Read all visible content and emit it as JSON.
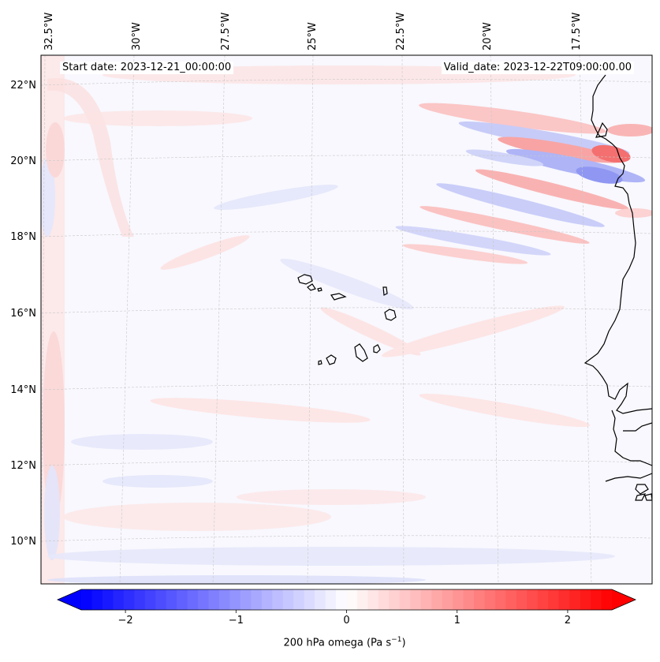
{
  "map": {
    "field": "200 hPa omega",
    "start_date_text": "Start date: 2023-12-21_00:00:00",
    "valid_date_text": "Valid_date: 2023-12-22T09:00:00.00",
    "lon_labels": [
      "32.5°W",
      "30°W",
      "27.5°W",
      "25°W",
      "22.5°W",
      "20°W",
      "17.5°W"
    ],
    "lat_labels": [
      "22°N",
      "20°N",
      "18°N",
      "16°N",
      "14°N",
      "12°N",
      "10°N"
    ],
    "colors": {
      "negative": "#0000ff",
      "zero": "#ffffff",
      "positive": "#ff0000",
      "coast": "#000000",
      "grid": "#bdbdbd"
    }
  },
  "colorbar": {
    "tick_labels": [
      "−2",
      "−1",
      "0",
      "1",
      "2"
    ],
    "tick_values": [
      -2,
      -1,
      0,
      1,
      2
    ],
    "min": -2.6,
    "max": 2.6,
    "label_prefix": "200 hPa omega (Pa s",
    "label_exp": "−1",
    "label_suffix": ")"
  }
}
